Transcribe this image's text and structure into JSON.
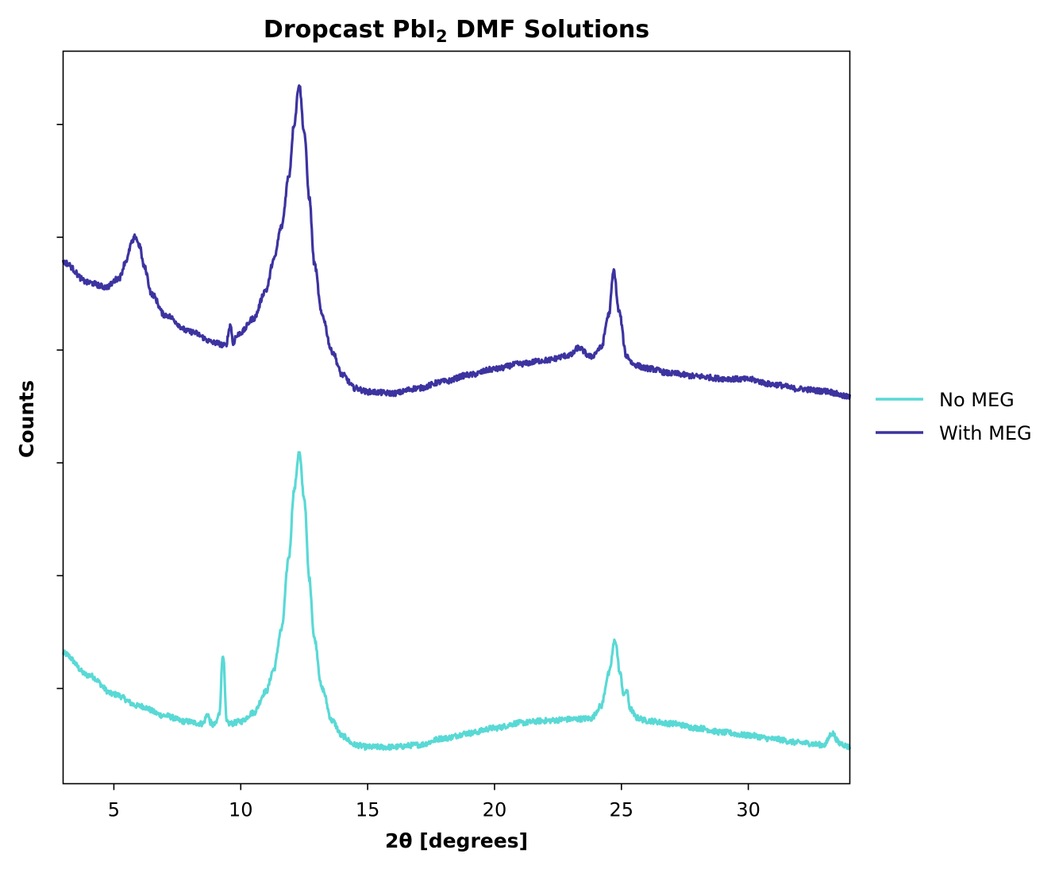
{
  "chart_data": {
    "type": "line",
    "title_main": "Dropcast PbI",
    "title_sub": "2",
    "title_rest": " DMF Solutions",
    "xlabel": "2θ [degrees]",
    "ylabel": "Counts",
    "xlim": [
      3,
      34
    ],
    "ylim": [
      0,
      100
    ],
    "xticks": [
      5,
      10,
      15,
      20,
      25,
      30
    ],
    "yticks": [
      13,
      28.4,
      43.8,
      59.2,
      74.6,
      90
    ],
    "legend_position": "center-right-outside",
    "series": [
      {
        "name": "No MEG",
        "color": "#59D9D5",
        "x": [
          3,
          4,
          5,
          6,
          7,
          7.8,
          8.5,
          8.7,
          8.8,
          8.9,
          9.0,
          9.15,
          9.3,
          9.45,
          9.6,
          10,
          10.5,
          11,
          11.3,
          11.6,
          11.9,
          12.1,
          12.3,
          12.5,
          12.7,
          12.9,
          13.2,
          13.6,
          14.0,
          14.5,
          15,
          16,
          17,
          18,
          19,
          20,
          21,
          22,
          23,
          23.8,
          24.2,
          24.5,
          24.75,
          24.95,
          25.1,
          25.2,
          25.35,
          25.6,
          26,
          27,
          28,
          29,
          30,
          31,
          32,
          33,
          33.3,
          33.6,
          34
        ],
        "values": [
          17.8,
          14.8,
          12.2,
          10.6,
          9.3,
          8.5,
          8.2,
          9.5,
          8.4,
          8.0,
          8.1,
          9.5,
          17.7,
          8.3,
          8.2,
          8.5,
          9.7,
          12.6,
          15.6,
          21.0,
          31.0,
          40.0,
          45.2,
          39.0,
          28.0,
          19.8,
          13.0,
          8.6,
          6.5,
          5.3,
          5.0,
          5.0,
          5.3,
          6.2,
          6.9,
          7.6,
          8.3,
          8.6,
          8.8,
          8.9,
          10.6,
          15.0,
          19.6,
          15.0,
          12.0,
          12.8,
          10.2,
          9.0,
          8.6,
          8.2,
          7.6,
          7.0,
          6.6,
          6.1,
          5.6,
          5.3,
          6.9,
          5.5,
          5.0
        ]
      },
      {
        "name": "With MEG",
        "color": "#3C33A0",
        "x": [
          3,
          4,
          4.7,
          5.2,
          5.5,
          5.7,
          5.85,
          6.0,
          6.2,
          6.5,
          7,
          8,
          9,
          9.4,
          9.6,
          9.7,
          9.8,
          10,
          10.5,
          11.0,
          11.3,
          11.6,
          11.9,
          12.1,
          12.3,
          12.5,
          12.7,
          12.9,
          13.2,
          13.6,
          14.0,
          14.5,
          15,
          16,
          17,
          18,
          19,
          20,
          21,
          22,
          23,
          23.3,
          23.8,
          24.2,
          24.5,
          24.7,
          24.9,
          25.2,
          25.5,
          26,
          27,
          28,
          29,
          30,
          31,
          32,
          33,
          34
        ],
        "values": [
          71.2,
          68.4,
          67.8,
          69.0,
          71.5,
          73.8,
          74.7,
          73.5,
          70.5,
          66.8,
          64.0,
          61.7,
          60.2,
          59.8,
          62.6,
          60.0,
          61.0,
          61.6,
          63.5,
          67.4,
          71.5,
          76.0,
          83.0,
          90.0,
          95.5,
          89.0,
          80.0,
          71.0,
          64.0,
          59.0,
          55.8,
          54.0,
          53.5,
          53.3,
          54.0,
          54.9,
          55.8,
          56.6,
          57.3,
          57.8,
          58.5,
          59.5,
          58.3,
          59.5,
          64.0,
          70.0,
          64.5,
          58.4,
          57.2,
          56.7,
          56.0,
          55.6,
          55.3,
          55.2,
          54.5,
          53.9,
          53.6,
          52.8
        ]
      }
    ]
  }
}
